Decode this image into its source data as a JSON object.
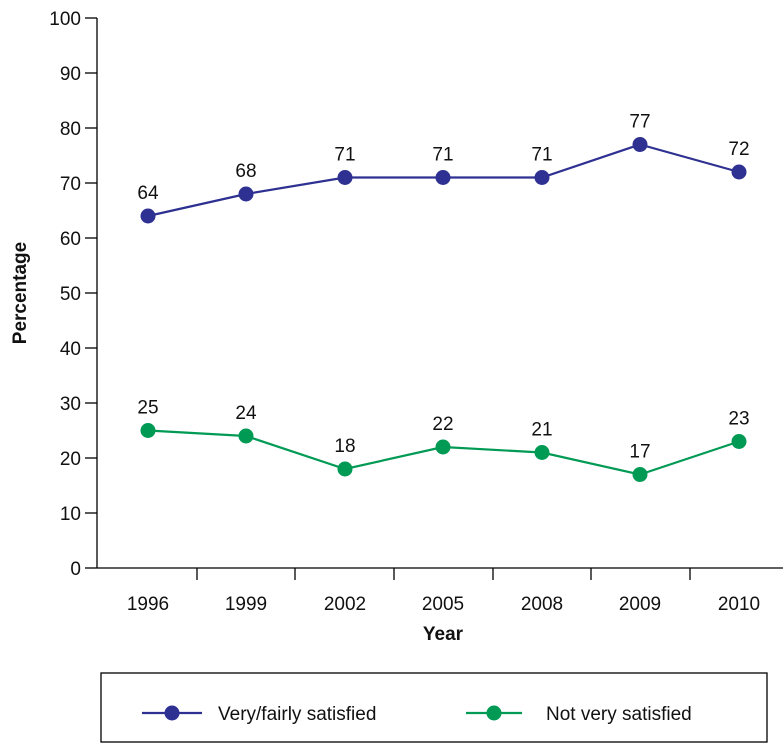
{
  "chart_data": {
    "type": "line",
    "x": [
      "1996",
      "1999",
      "2002",
      "2005",
      "2008",
      "2009",
      "2010"
    ],
    "series": [
      {
        "name": "Very/fairly satisfied",
        "values": [
          64,
          68,
          71,
          71,
          71,
          77,
          72
        ],
        "color": "#2e3192"
      },
      {
        "name": "Not very satisfied",
        "values": [
          25,
          24,
          18,
          22,
          21,
          17,
          23
        ],
        "color": "#009a54"
      }
    ],
    "xlabel": "Year",
    "ylabel": "Percentage",
    "ylim": [
      0,
      100
    ],
    "yticks": [
      0,
      10,
      20,
      30,
      40,
      50,
      60,
      70,
      80,
      90,
      100
    ],
    "grid": false,
    "legend_position": "bottom"
  }
}
